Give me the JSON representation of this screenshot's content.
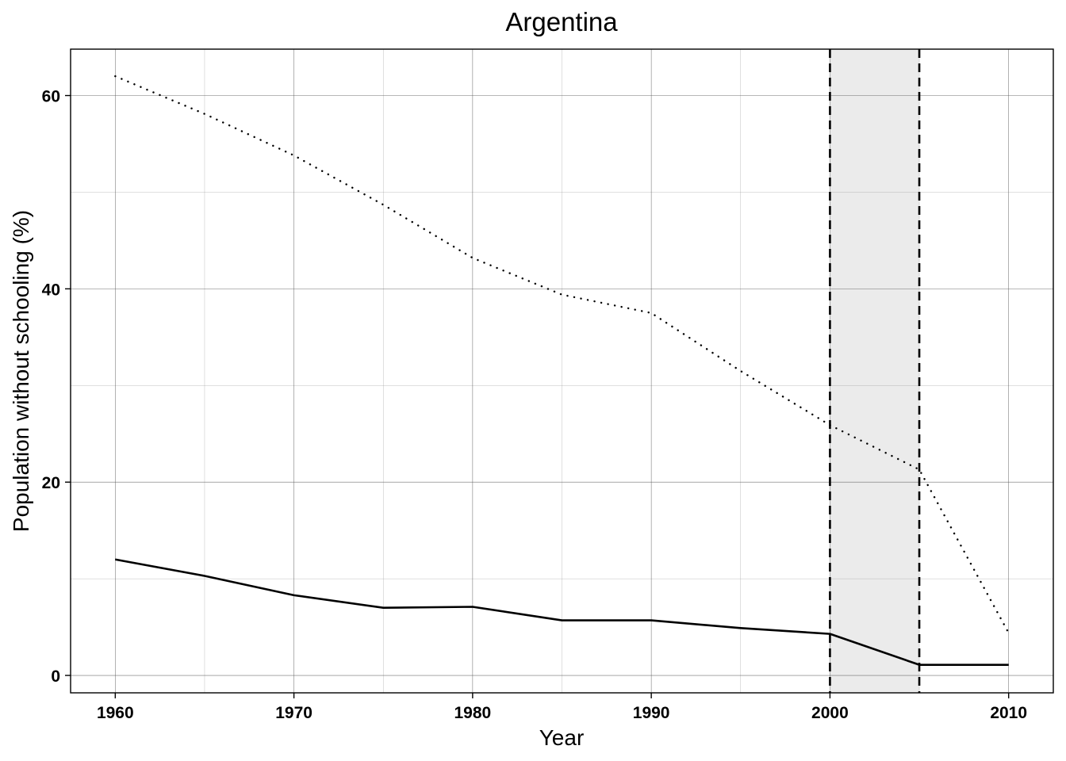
{
  "chart_data": {
    "type": "line",
    "title": "Argentina",
    "xlabel": "Year",
    "ylabel": "Population without schooling (%)",
    "xlim": [
      1957.5,
      2012.5
    ],
    "ylim": [
      -1.8,
      64.8
    ],
    "x_ticks": [
      1960,
      1970,
      1980,
      1990,
      2000,
      2010
    ],
    "x_minor_ticks": [
      1965,
      1975,
      1985,
      1995,
      2005
    ],
    "y_ticks": [
      0,
      20,
      40,
      60
    ],
    "y_minor_ticks": [
      10,
      30,
      50
    ],
    "grid": true,
    "legend": "none",
    "shaded_region": {
      "x_start": 2000,
      "x_end": 2005,
      "color": "#ebebeb",
      "boundary_style": "dashed"
    },
    "series": [
      {
        "name": "dotted-series",
        "line_style": "dotted",
        "color": "#000000",
        "x": [
          1960,
          1965,
          1970,
          1975,
          1980,
          1985,
          1990,
          1995,
          2000,
          2005,
          2010
        ],
        "values": [
          62.0,
          58.1,
          53.8,
          48.7,
          43.2,
          39.4,
          37.5,
          31.5,
          25.9,
          21.3,
          4.4
        ]
      },
      {
        "name": "solid-series",
        "line_style": "solid",
        "color": "#000000",
        "x": [
          1960,
          1965,
          1970,
          1975,
          1980,
          1985,
          1990,
          1995,
          2000,
          2005,
          2010
        ],
        "values": [
          12.0,
          10.3,
          8.3,
          7.0,
          7.1,
          5.7,
          5.7,
          4.9,
          4.3,
          1.1,
          1.1
        ]
      }
    ]
  }
}
